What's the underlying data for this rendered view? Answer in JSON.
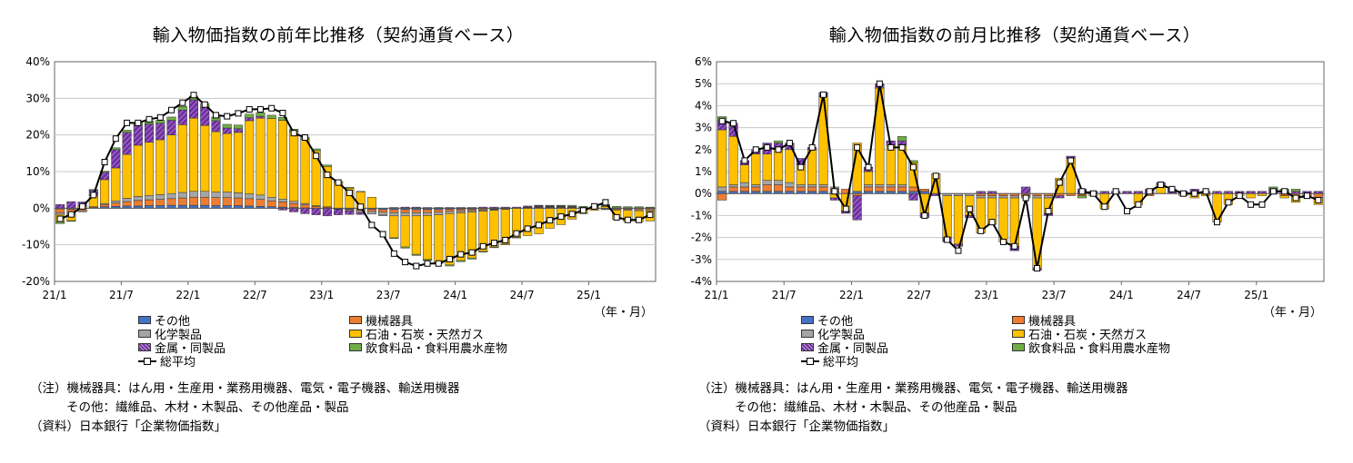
{
  "legend": {
    "other": "その他",
    "machinery": "機械器具",
    "chemical": "化学製品",
    "petroleum": "石油・石炭・天然ガス",
    "metal": "金属・同製品",
    "food": "飲食料品・食料用農水産物",
    "total": "総平均"
  },
  "notes": {
    "note1": "（注）機械器具：はん用・生産用・業務用機器、電気・電子機器、輸送用機器",
    "note2": "その他：繊維品、木材・木製品、その他産品・製品",
    "source": "（資料）日本銀行「企業物価指数」"
  },
  "colors": {
    "other": "#4472C4",
    "machinery": "#ED7D31",
    "chemical": "#A5A5A5",
    "petroleum": "#FFC000",
    "metal": "#7030A0",
    "food": "#70AD47",
    "total": "#000000"
  },
  "chart_data": [
    {
      "type": "bar",
      "title": "輸入物価指数の前年比推移（契約通貨ベース）",
      "unit_label": "（年・月）",
      "ylim": [
        -20,
        40
      ],
      "yticks": [
        -20,
        -10,
        0,
        10,
        20,
        30,
        40
      ],
      "ytick_labels": [
        "-20%",
        "-10%",
        "0%",
        "10%",
        "20%",
        "30%",
        "40%"
      ],
      "xtick_labels": [
        "21/1",
        "21/7",
        "22/1",
        "22/7",
        "23/1",
        "23/7",
        "24/1",
        "24/7",
        "25/1"
      ],
      "grid": true,
      "categories": [
        "21/1",
        "21/2",
        "21/3",
        "21/4",
        "21/5",
        "21/6",
        "21/7",
        "21/8",
        "21/9",
        "21/10",
        "21/11",
        "21/12",
        "22/1",
        "22/2",
        "22/3",
        "22/4",
        "22/5",
        "22/6",
        "22/7",
        "22/8",
        "22/9",
        "22/10",
        "22/11",
        "22/12",
        "23/1",
        "23/2",
        "23/3",
        "23/4",
        "23/5",
        "23/6",
        "23/7",
        "23/8",
        "23/9",
        "23/10",
        "23/11",
        "23/12",
        "24/1",
        "24/2",
        "24/3",
        "24/4",
        "24/5",
        "24/6",
        "24/7",
        "24/8",
        "24/9",
        "24/10",
        "24/11",
        "24/12",
        "25/1",
        "25/2",
        "25/3",
        "25/4",
        "25/5",
        "25/6"
      ],
      "series": [
        {
          "name": "その他",
          "key": "other",
          "values": [
            -0.2,
            -0.3,
            -0.1,
            0.2,
            0.4,
            0.5,
            0.6,
            0.6,
            0.7,
            0.7,
            0.8,
            0.8,
            0.8,
            0.8,
            0.7,
            0.7,
            0.7,
            0.6,
            0.5,
            0.4,
            0.3,
            0.2,
            0.1,
            0.0,
            -0.1,
            -0.2,
            -0.2,
            -0.3,
            -0.3,
            -0.4,
            -0.4,
            -0.4,
            -0.4,
            -0.4,
            -0.4,
            -0.3,
            -0.3,
            -0.3,
            -0.2,
            -0.2,
            -0.1,
            0.0,
            0.1,
            0.1,
            0.1,
            0.1,
            0.1,
            0.0,
            0.0,
            0.0,
            0.0,
            0.0,
            0.0,
            0.0
          ]
        },
        {
          "name": "機械器具",
          "key": "machinery",
          "values": [
            -1.0,
            -1.1,
            -0.6,
            0.2,
            0.6,
            0.9,
            1.2,
            1.5,
            1.6,
            1.7,
            1.8,
            2.0,
            2.2,
            2.2,
            2.2,
            2.2,
            2.1,
            2.0,
            1.9,
            1.6,
            1.4,
            1.1,
            0.8,
            0.5,
            0.3,
            0.0,
            -0.2,
            -0.4,
            -0.6,
            -0.7,
            -0.8,
            -0.8,
            -0.8,
            -0.8,
            -0.7,
            -0.6,
            -0.5,
            -0.4,
            -0.3,
            -0.2,
            -0.1,
            0.0,
            0.1,
            0.2,
            0.2,
            0.2,
            0.2,
            0.1,
            0.0,
            -0.2,
            -0.3,
            -0.3,
            -0.4,
            -0.4
          ]
        },
        {
          "name": "化学製品",
          "key": "chemical",
          "values": [
            -0.5,
            -0.5,
            -0.3,
            0.0,
            0.3,
            0.6,
            0.9,
            1.1,
            1.2,
            1.3,
            1.4,
            1.5,
            1.6,
            1.6,
            1.5,
            1.5,
            1.4,
            1.3,
            1.2,
            1.0,
            0.8,
            0.6,
            0.4,
            0.2,
            0.1,
            -0.1,
            -0.3,
            -0.5,
            -0.7,
            -0.8,
            -0.9,
            -0.9,
            -0.9,
            -0.8,
            -0.7,
            -0.6,
            -0.5,
            -0.4,
            -0.3,
            -0.2,
            -0.1,
            0.0,
            0.1,
            0.1,
            0.1,
            0.1,
            0.0,
            0.0,
            -0.1,
            -0.2,
            -0.2,
            -0.3,
            -0.3,
            -0.3
          ]
        },
        {
          "name": "石油・石炭・天然ガス",
          "key": "petroleum",
          "values": [
            -2.0,
            -1.5,
            0.5,
            3.0,
            6.5,
            9.0,
            12.0,
            14.0,
            14.5,
            15.0,
            16.0,
            18.5,
            20.0,
            18.0,
            16.5,
            16.0,
            16.5,
            20.0,
            21.0,
            21.5,
            21.5,
            19.0,
            17.5,
            15.0,
            11.0,
            7.0,
            5.5,
            4.5,
            3.0,
            0.0,
            -6.0,
            -8.5,
            -10.5,
            -12.0,
            -13.0,
            -14.0,
            -13.0,
            -12.5,
            -11.0,
            -10.0,
            -9.5,
            -8.0,
            -7.5,
            -7.0,
            -5.5,
            -4.5,
            -3.0,
            -1.5,
            -0.5,
            0.5,
            -2.5,
            -3.0,
            -3.0,
            -2.8
          ]
        },
        {
          "name": "金属・同製品",
          "key": "metal",
          "values": [
            1.0,
            1.8,
            1.2,
            1.5,
            2.0,
            5.0,
            6.0,
            5.5,
            5.0,
            4.5,
            4.0,
            4.0,
            5.0,
            5.0,
            3.0,
            1.5,
            1.0,
            0.8,
            0.5,
            0.0,
            -0.5,
            -1.0,
            -1.5,
            -1.8,
            -2.0,
            -1.5,
            -1.0,
            -0.5,
            0.0,
            0.0,
            0.2,
            0.3,
            0.3,
            0.2,
            0.2,
            0.2,
            0.2,
            0.2,
            0.3,
            0.3,
            0.3,
            0.3,
            0.3,
            0.3,
            0.2,
            0.2,
            0.2,
            0.1,
            0.1,
            0.1,
            0.1,
            0.1,
            0.1,
            0.1
          ]
        },
        {
          "name": "飲食料品・食料用農水産物",
          "key": "food",
          "values": [
            -0.5,
            -0.2,
            0.0,
            0.2,
            0.3,
            0.5,
            0.6,
            0.7,
            0.8,
            0.8,
            0.9,
            1.0,
            1.0,
            1.0,
            1.0,
            1.0,
            1.0,
            1.0,
            1.0,
            0.9,
            0.8,
            0.7,
            0.6,
            0.5,
            0.4,
            0.3,
            0.2,
            0.1,
            0.0,
            -0.1,
            -0.2,
            -0.3,
            -0.3,
            -0.3,
            -0.3,
            -0.3,
            -0.3,
            -0.3,
            -0.2,
            -0.2,
            -0.1,
            -0.1,
            0.0,
            0.1,
            0.2,
            0.2,
            0.3,
            0.3,
            0.4,
            0.4,
            0.4,
            0.3,
            0.3,
            0.2
          ]
        },
        {
          "name": "総平均",
          "key": "total",
          "type": "line",
          "values": [
            -2.9,
            -1.7,
            0.5,
            3.6,
            12.6,
            19.0,
            23.3,
            23.3,
            24.3,
            24.8,
            26.8,
            28.8,
            30.9,
            28.3,
            25.4,
            25.1,
            25.9,
            27.0,
            27.0,
            27.3,
            26.0,
            20.5,
            19.3,
            14.3,
            9.1,
            7.0,
            4.2,
            0.4,
            -4.6,
            -7.1,
            -12.4,
            -14.7,
            -15.8,
            -15.1,
            -15.1,
            -13.9,
            -12.6,
            -12.1,
            -10.4,
            -9.5,
            -8.7,
            -6.9,
            -5.6,
            -4.6,
            -3.3,
            -2.3,
            -1.6,
            -0.6,
            0.5,
            1.6,
            -2.5,
            -3.2,
            -3.2,
            -1.8
          ]
        }
      ]
    },
    {
      "type": "bar",
      "title": "輸入物価指数の前月比推移（契約通貨ベース）",
      "unit_label": "（年・月）",
      "ylim": [
        -4,
        6
      ],
      "yticks": [
        -4,
        -3,
        -2,
        -1,
        0,
        1,
        2,
        3,
        4,
        5,
        6
      ],
      "ytick_labels": [
        "-4%",
        "-3%",
        "-2%",
        "-1%",
        "0%",
        "1%",
        "2%",
        "3%",
        "4%",
        "5%",
        "6%"
      ],
      "xtick_labels": [
        "21/1",
        "21/7",
        "22/1",
        "22/7",
        "23/1",
        "23/7",
        "24/1",
        "24/7",
        "25/1"
      ],
      "grid": true,
      "categories": [
        "21/1",
        "21/2",
        "21/3",
        "21/4",
        "21/5",
        "21/6",
        "21/7",
        "21/8",
        "21/9",
        "21/10",
        "21/11",
        "21/12",
        "22/1",
        "22/2",
        "22/3",
        "22/4",
        "22/5",
        "22/6",
        "22/7",
        "22/8",
        "22/9",
        "22/10",
        "22/11",
        "22/12",
        "23/1",
        "23/2",
        "23/3",
        "23/4",
        "23/5",
        "23/6",
        "23/7",
        "23/8",
        "23/9",
        "23/10",
        "23/11",
        "23/12",
        "24/1",
        "24/2",
        "24/3",
        "24/4",
        "24/5",
        "24/6",
        "24/7",
        "24/8",
        "24/9",
        "24/10",
        "24/11",
        "24/12",
        "25/1",
        "25/2",
        "25/3",
        "25/4",
        "25/5",
        "25/6"
      ],
      "series": [
        {
          "name": "その他",
          "key": "other",
          "values": [
            0.1,
            0.1,
            0.1,
            0.1,
            0.1,
            0.1,
            0.1,
            0.1,
            0.1,
            0.1,
            0.1,
            0.0,
            0.1,
            0.1,
            0.1,
            0.1,
            0.1,
            0.1,
            0.1,
            0.0,
            0.0,
            0.0,
            0.0,
            0.0,
            0.0,
            0.0,
            0.0,
            0.0,
            0.0,
            0.0,
            0.0,
            0.0,
            0.0,
            0.0,
            0.0,
            0.0,
            0.0,
            0.0,
            0.0,
            0.0,
            0.0,
            0.0,
            0.0,
            0.0,
            0.0,
            0.0,
            0.0,
            0.0,
            0.0,
            0.0,
            0.0,
            0.0,
            0.0,
            0.0
          ]
        },
        {
          "name": "機械器具",
          "key": "machinery",
          "values": [
            -0.3,
            0.2,
            0.2,
            0.2,
            0.3,
            0.3,
            0.2,
            0.2,
            0.2,
            0.2,
            0.1,
            0.2,
            -0.1,
            0.2,
            0.2,
            0.2,
            0.2,
            0.2,
            0.1,
            0.0,
            0.0,
            0.0,
            0.0,
            -0.1,
            -0.1,
            -0.1,
            -0.1,
            -0.1,
            -0.1,
            -0.1,
            -0.1,
            -0.1,
            -0.1,
            0.0,
            0.0,
            0.0,
            0.0,
            0.0,
            -0.1,
            0.0,
            0.0,
            0.0,
            0.0,
            0.0,
            0.0,
            0.0,
            0.0,
            0.0,
            0.0,
            0.0,
            -0.1,
            -0.1,
            -0.1,
            -0.2
          ]
        },
        {
          "name": "化学製品",
          "key": "chemical",
          "values": [
            0.2,
            0.1,
            0.2,
            0.1,
            0.2,
            0.2,
            0.2,
            0.1,
            0.1,
            0.1,
            0.1,
            0.0,
            0.0,
            0.1,
            0.1,
            0.1,
            0.1,
            0.0,
            0.0,
            0.0,
            -0.1,
            -0.1,
            -0.1,
            -0.1,
            -0.1,
            -0.1,
            -0.1,
            -0.1,
            -0.1,
            -0.1,
            0.0,
            0.0,
            0.0,
            0.0,
            0.0,
            0.0,
            0.0,
            0.0,
            0.0,
            0.0,
            0.0,
            0.0,
            0.0,
            0.0,
            0.0,
            0.0,
            0.0,
            0.0,
            0.0,
            0.0,
            0.0,
            0.0,
            0.0,
            0.0
          ]
        },
        {
          "name": "石油・石炭・天然ガス",
          "key": "petroleum",
          "values": [
            2.6,
            2.2,
            0.8,
            1.4,
            1.2,
            1.4,
            1.5,
            0.9,
            1.6,
            4.0,
            -0.2,
            -0.8,
            2.2,
            0.6,
            4.4,
            1.8,
            1.8,
            1.1,
            -0.9,
            0.9,
            -1.9,
            -2.2,
            -0.9,
            -1.6,
            -1.2,
            -2.0,
            -2.2,
            0.0,
            -3.2,
            -0.7,
            0.7,
            1.6,
            0.0,
            -0.1,
            -0.7,
            0.0,
            0.0,
            -0.5,
            0.0,
            0.4,
            0.0,
            -0.1,
            -0.2,
            -0.1,
            -1.3,
            -0.5,
            -0.1,
            -0.2,
            -0.1,
            0.0,
            -0.1,
            -0.3,
            -0.1,
            -0.3
          ]
        },
        {
          "name": "金属・同製品",
          "key": "metal",
          "values": [
            0.4,
            0.6,
            0.2,
            0.2,
            0.5,
            0.3,
            0.3,
            0.3,
            0.1,
            0.2,
            -0.1,
            -0.1,
            -1.1,
            0.2,
            0.2,
            0.2,
            0.2,
            -0.3,
            -0.2,
            -0.1,
            -0.2,
            -0.1,
            -0.1,
            0.1,
            0.1,
            0.0,
            -0.2,
            0.3,
            -0.1,
            -0.1,
            -0.1,
            0.1,
            0.2,
            0.1,
            0.1,
            0.1,
            0.1,
            0.1,
            0.2,
            0.1,
            0.2,
            0.1,
            0.2,
            0.1,
            0.1,
            0.1,
            0.1,
            0.1,
            0.1,
            0.2,
            0.1,
            0.1,
            0.1,
            0.1
          ]
        },
        {
          "name": "飲食料品・食料用農水産物",
          "key": "food",
          "values": [
            0.2,
            0.0,
            0.0,
            0.0,
            0.0,
            0.1,
            0.0,
            0.0,
            0.0,
            0.0,
            0.0,
            0.0,
            0.0,
            0.0,
            0.0,
            0.0,
            0.2,
            0.1,
            0.0,
            0.0,
            0.0,
            0.0,
            0.0,
            0.0,
            0.0,
            0.0,
            0.0,
            0.0,
            0.0,
            0.0,
            0.0,
            0.0,
            -0.1,
            0.0,
            0.0,
            0.0,
            0.0,
            0.0,
            0.0,
            0.0,
            0.0,
            0.0,
            0.0,
            0.0,
            0.0,
            0.0,
            0.0,
            0.0,
            0.0,
            0.1,
            0.1,
            0.1,
            0.0,
            0.0
          ]
        },
        {
          "name": "総平均",
          "key": "total",
          "type": "line",
          "values": [
            3.3,
            3.2,
            1.5,
            2.0,
            2.1,
            2.0,
            2.3,
            1.2,
            2.1,
            4.5,
            0.1,
            -0.7,
            2.1,
            1.2,
            5.0,
            2.1,
            2.1,
            1.2,
            -1.0,
            0.8,
            -2.1,
            -2.6,
            -0.7,
            -1.7,
            -1.3,
            -2.2,
            -2.4,
            -0.2,
            -3.4,
            -0.8,
            0.5,
            1.5,
            0.1,
            0.0,
            -0.6,
            0.1,
            -0.8,
            -0.5,
            0.1,
            0.4,
            0.2,
            0.0,
            0.0,
            0.1,
            -1.3,
            -0.4,
            -0.1,
            -0.5,
            -0.5,
            0.1,
            0.1,
            -0.2,
            -0.1,
            -0.3
          ]
        }
      ]
    }
  ]
}
